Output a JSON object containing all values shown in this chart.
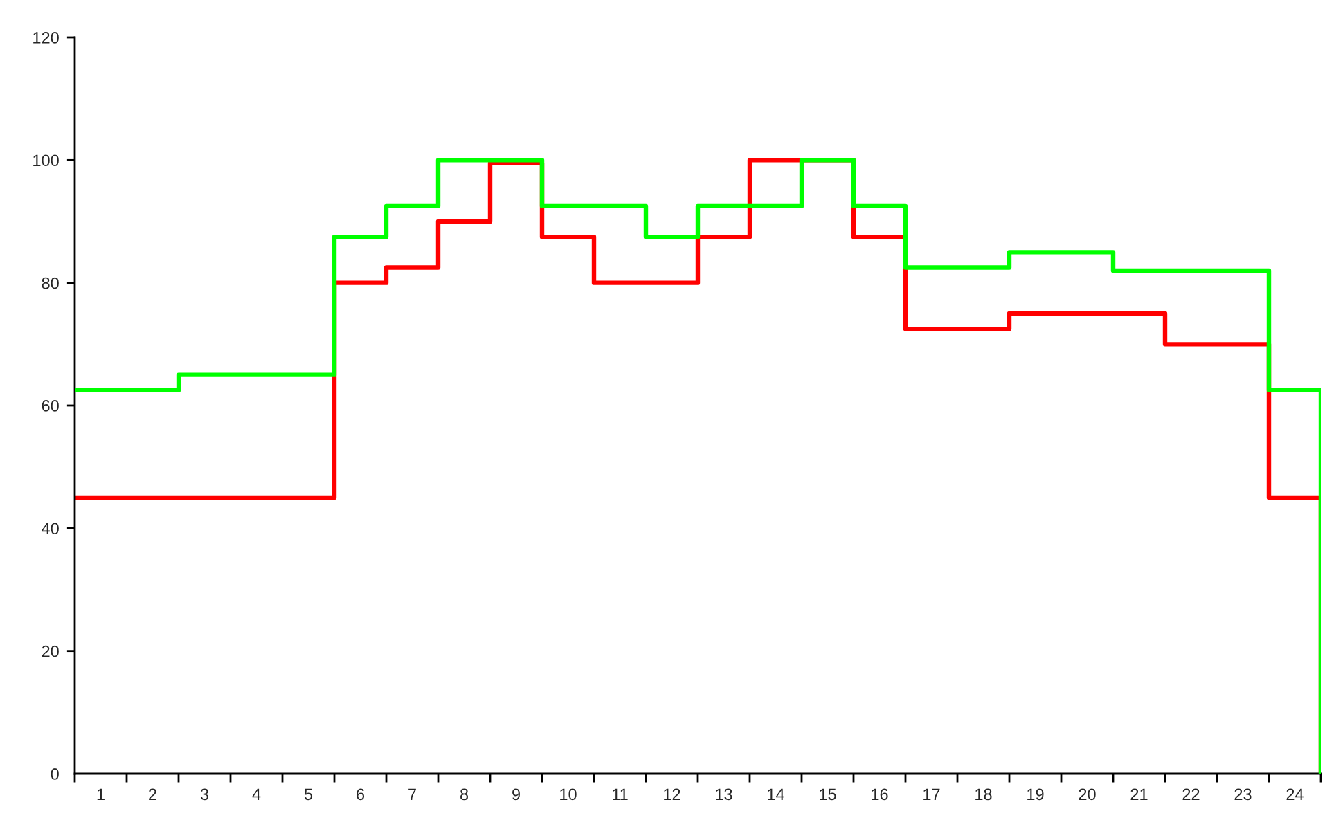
{
  "chart_data": {
    "type": "step",
    "x": [
      0,
      1,
      2,
      3,
      4,
      5,
      6,
      7,
      8,
      9,
      10,
      11,
      12,
      13,
      14,
      15,
      16,
      17,
      18,
      19,
      20,
      21,
      22,
      23,
      24
    ],
    "xlim": [
      0,
      24
    ],
    "xticks": [
      {
        "value": 0,
        "label": null
      },
      {
        "value": 0.5,
        "label": "1"
      },
      {
        "value": 1,
        "label": null
      },
      {
        "value": 1.5,
        "label": "2"
      },
      {
        "value": 2,
        "label": null
      },
      {
        "value": 2.5,
        "label": "3"
      },
      {
        "value": 3,
        "label": null
      },
      {
        "value": 3.5,
        "label": "4"
      },
      {
        "value": 4,
        "label": null
      },
      {
        "value": 4.5,
        "label": "5"
      },
      {
        "value": 5,
        "label": null
      },
      {
        "value": 5.5,
        "label": "6"
      },
      {
        "value": 6,
        "label": null
      },
      {
        "value": 6.5,
        "label": "7"
      },
      {
        "value": 7,
        "label": null
      },
      {
        "value": 7.5,
        "label": "8"
      },
      {
        "value": 8,
        "label": null
      },
      {
        "value": 8.5,
        "label": "9"
      },
      {
        "value": 9,
        "label": null
      },
      {
        "value": 9.5,
        "label": "10"
      },
      {
        "value": 10,
        "label": null
      },
      {
        "value": 10.5,
        "label": "11"
      },
      {
        "value": 11,
        "label": null
      },
      {
        "value": 11.5,
        "label": "12"
      },
      {
        "value": 12,
        "label": null
      },
      {
        "value": 12.5,
        "label": "13"
      },
      {
        "value": 13,
        "label": null
      },
      {
        "value": 13.5,
        "label": "14"
      },
      {
        "value": 14,
        "label": null
      },
      {
        "value": 14.5,
        "label": "15"
      },
      {
        "value": 15,
        "label": null
      },
      {
        "value": 15.5,
        "label": "16"
      },
      {
        "value": 16,
        "label": null
      },
      {
        "value": 16.5,
        "label": "17"
      },
      {
        "value": 17,
        "label": null
      },
      {
        "value": 17.5,
        "label": "18"
      },
      {
        "value": 18,
        "label": null
      },
      {
        "value": 18.5,
        "label": "19"
      },
      {
        "value": 19,
        "label": null
      },
      {
        "value": 19.5,
        "label": "20"
      },
      {
        "value": 20,
        "label": null
      },
      {
        "value": 20.5,
        "label": "21"
      },
      {
        "value": 21,
        "label": null
      },
      {
        "value": 21.5,
        "label": "22"
      },
      {
        "value": 22,
        "label": null
      },
      {
        "value": 22.5,
        "label": "23"
      },
      {
        "value": 23,
        "label": null
      },
      {
        "value": 23.5,
        "label": "24"
      },
      {
        "value": 24,
        "label": null
      }
    ],
    "ylim": [
      0,
      120
    ],
    "yticks": [
      0,
      20,
      40,
      60,
      80,
      100,
      120
    ],
    "line_style": "solid",
    "series": [
      {
        "color": "#ff0000",
        "values": [
          45,
          45,
          45,
          45,
          45,
          80,
          82.5,
          90,
          99.5,
          87.5,
          80,
          80,
          87.5,
          100,
          100,
          87.5,
          72.5,
          72.5,
          75,
          75,
          75,
          70,
          70,
          45,
          0
        ]
      },
      {
        "color": "#00ff00",
        "values": [
          62.5,
          62.5,
          65,
          65,
          65,
          87.5,
          92.5,
          100,
          100,
          92.5,
          92.5,
          87.5,
          92.5,
          92.5,
          100,
          92.5,
          82.5,
          82.5,
          85,
          85,
          82,
          82,
          82,
          62.5,
          0
        ]
      }
    ]
  }
}
